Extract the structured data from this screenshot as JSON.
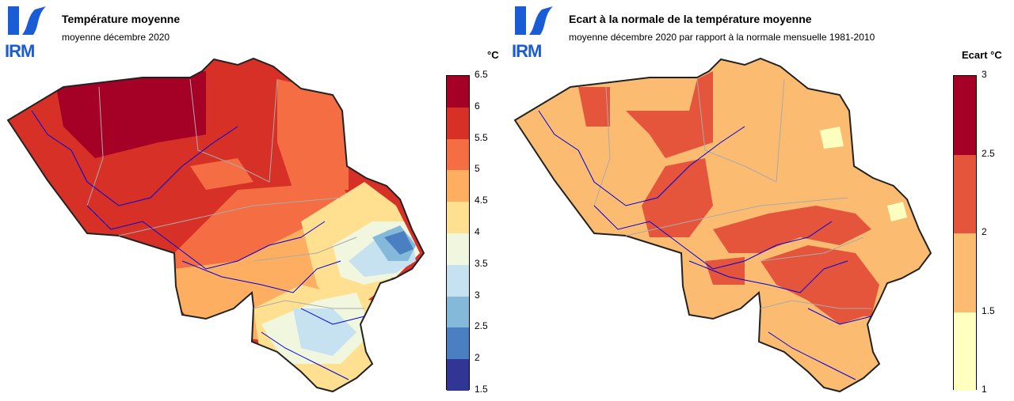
{
  "left_panel": {
    "logo_text": "IRM",
    "title": "Température moyenne",
    "subtitle": "moyenne décembre 2020",
    "legend": {
      "unit": "°C",
      "ticks": [
        "6.5",
        "6",
        "5.5",
        "5",
        "4.5",
        "4",
        "3.5",
        "3",
        "2.5",
        "2",
        "1.5"
      ],
      "colors": [
        "#a50026",
        "#d73027",
        "#f46d43",
        "#fdae61",
        "#fee090",
        "#f1f7de",
        "#c6e1ef",
        "#84b9da",
        "#4a7fc1",
        "#313695"
      ]
    }
  },
  "right_panel": {
    "logo_text": "IRM",
    "title": "Ecart à la normale de la température moyenne",
    "subtitle": "moyenne décembre 2020 par rapport à la normale mensuelle 1981-2010",
    "legend": {
      "unit": "Ecart °C",
      "ticks": [
        "3",
        "2.5",
        "2",
        "1.5",
        "1"
      ],
      "colors": [
        "#a50026",
        "#e5553b",
        "#fbbc72",
        "#ffffc0"
      ]
    }
  }
}
